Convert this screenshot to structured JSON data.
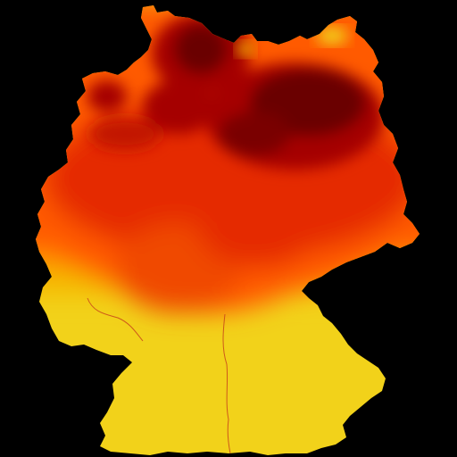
{
  "map": {
    "region_name": "germany-outline",
    "background_color": "#000000",
    "colors": {
      "high_dark": "#6b0000",
      "high": "#a50000",
      "mid_red": "#e52a00",
      "orange": "#ff5a00",
      "light_orange": "#ff8c00",
      "yellow_orange": "#f5b800",
      "low": "#f2d21a",
      "border_line": "#c8441a"
    },
    "icons": {
      "boundary": "region-boundary-line"
    }
  }
}
